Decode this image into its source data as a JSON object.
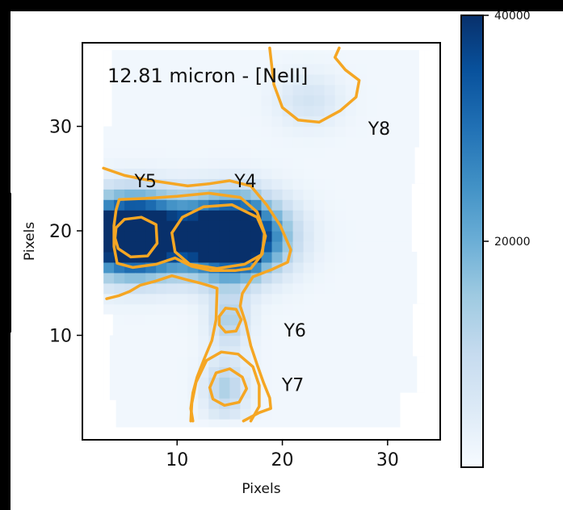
{
  "chart_data": {
    "type": "heatmap",
    "title": "12.81 micron - [NeII]",
    "xlabel": "Pixels",
    "ylabel": "Pixels",
    "xlim": [
      1,
      35
    ],
    "ylim": [
      0,
      38
    ],
    "xticks": [
      10,
      20,
      30
    ],
    "yticks": [
      10,
      20,
      30
    ],
    "colormap": "Blues",
    "color_range": [
      0,
      40000
    ],
    "colorbar_ticks": [
      20000,
      40000
    ],
    "contour_color": "#f5a623",
    "regions": [
      {
        "label": "Y4",
        "x": 15.2,
        "y": 19.5,
        "peak": 40000
      },
      {
        "label": "Y5",
        "x": 5.8,
        "y": 19.6,
        "peak": 40000
      },
      {
        "label": "Y6",
        "x": 15.0,
        "y": 11.5,
        "peak": 12000
      },
      {
        "label": "Y7",
        "x": 14.5,
        "y": 5.0,
        "peak": 12000
      },
      {
        "label": "Y8",
        "x": 22.5,
        "y": 32.5,
        "peak": 7000
      }
    ],
    "region_labels": [
      {
        "text": "Y4",
        "x": 16.5,
        "y": 24.8
      },
      {
        "text": "Y5",
        "x": 7.0,
        "y": 24.8
      },
      {
        "text": "Y6",
        "x": 21.2,
        "y": 10.5
      },
      {
        "text": "Y7",
        "x": 21.0,
        "y": 5.3
      },
      {
        "text": "Y8",
        "x": 29.2,
        "y": 29.8
      }
    ]
  }
}
